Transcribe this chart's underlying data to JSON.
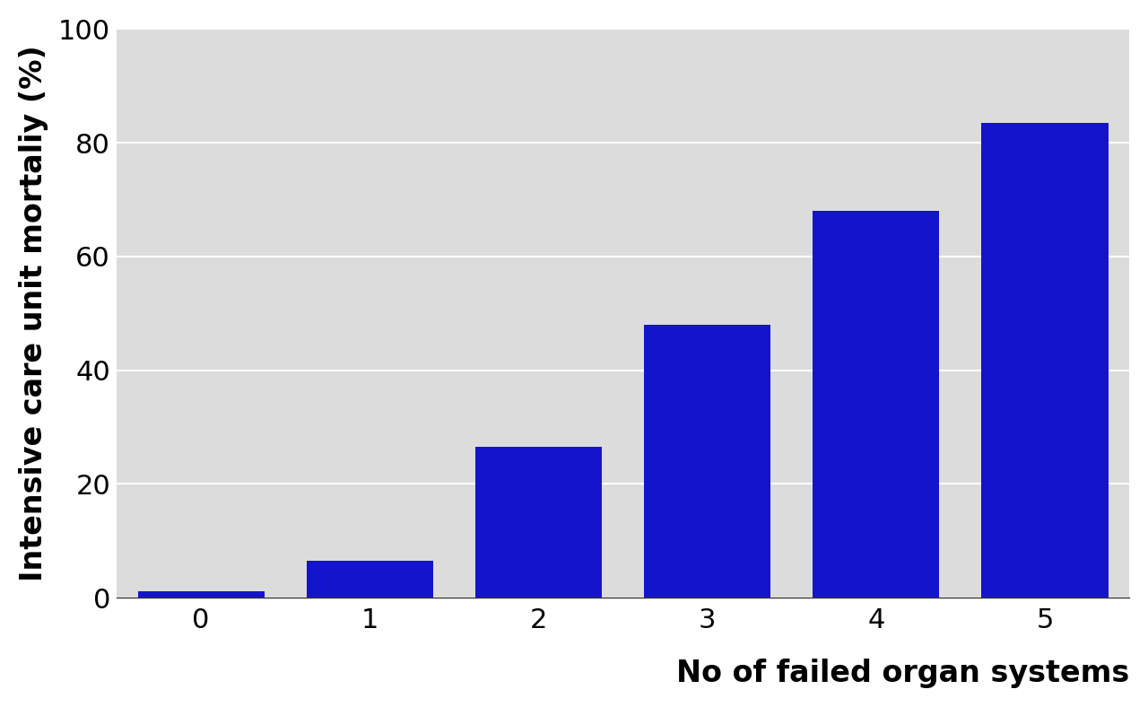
{
  "categories": [
    "0",
    "1",
    "2",
    "3",
    "4",
    "5"
  ],
  "values": [
    1.2,
    6.5,
    26.5,
    48.0,
    68.0,
    83.5
  ],
  "bar_color": "#1414CC",
  "xlabel": "No of failed organ systems",
  "ylabel": "Intensive care unit mortaliy (%)",
  "ylim": [
    0,
    100
  ],
  "yticks": [
    0,
    20,
    40,
    60,
    80,
    100
  ],
  "plot_bg_color": "#DCDCDC",
  "fig_bg_color": "#FFFFFF",
  "grid_color": "#FFFFFF",
  "xlabel_fontsize": 24,
  "ylabel_fontsize": 24,
  "tick_fontsize": 22,
  "xlabel_fontweight": "bold",
  "ylabel_fontweight": "bold",
  "bar_width": 0.75
}
